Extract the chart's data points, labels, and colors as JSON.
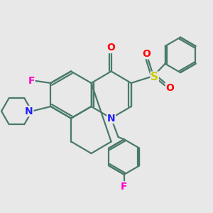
{
  "bg_color": "#e8e8e8",
  "bond_color": "#4a7a6a",
  "bond_width": 1.6,
  "atom_colors": {
    "N": "#2020ff",
    "O": "#ff0000",
    "F": "#ff00cc",
    "S": "#cccc00",
    "C": "#000000"
  },
  "font_size_atom": 9
}
